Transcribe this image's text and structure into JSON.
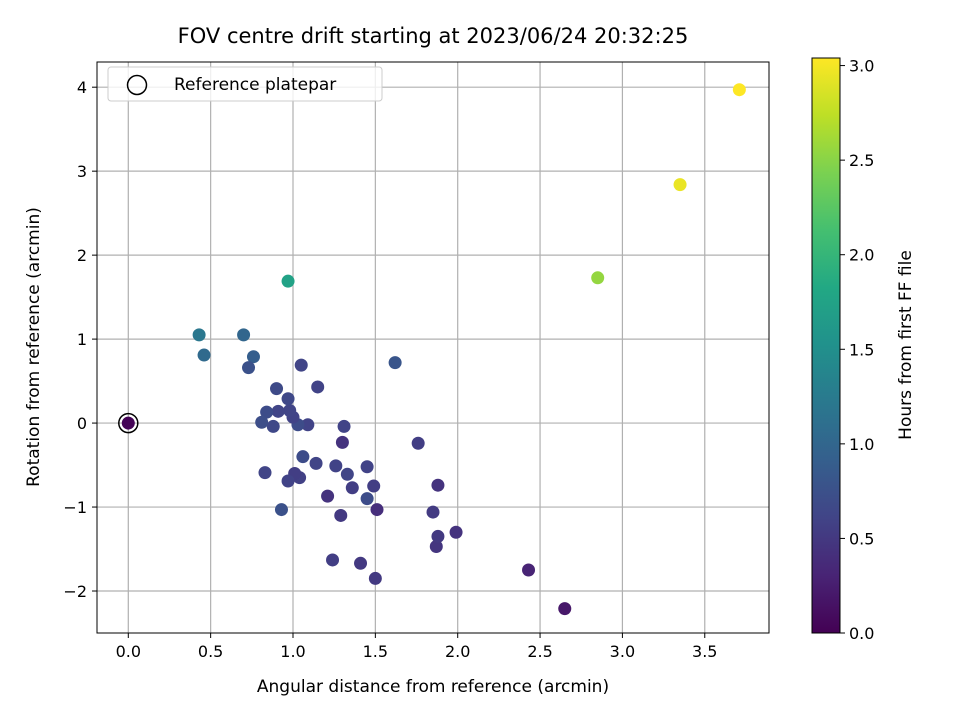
{
  "chart_data": {
    "type": "scatter",
    "title": "FOV centre drift starting at 2023/06/24 20:32:25",
    "xlabel": "Angular distance from reference (arcmin)",
    "ylabel": "Rotation from reference (arcmin)",
    "xlim": [
      -0.19,
      3.89
    ],
    "ylim": [
      -2.5,
      4.3
    ],
    "xticks": [
      0.0,
      0.5,
      1.0,
      1.5,
      2.0,
      2.5,
      3.0,
      3.5
    ],
    "xtick_labels": [
      "0.0",
      "0.5",
      "1.0",
      "1.5",
      "2.0",
      "2.5",
      "3.0",
      "3.5"
    ],
    "yticks": [
      -2,
      -1,
      0,
      1,
      2,
      3,
      4
    ],
    "ytick_labels": [
      "−2",
      "−1",
      "0",
      "1",
      "2",
      "3",
      "4"
    ],
    "grid": true,
    "legend": {
      "position": "upper-left",
      "entries": [
        "Reference platepar"
      ]
    },
    "colorbar": {
      "label": "Hours from first FF file",
      "range": [
        0.0,
        3.04
      ],
      "ticks": [
        0.0,
        0.5,
        1.0,
        1.5,
        2.0,
        2.5,
        3.0
      ],
      "tick_labels": [
        "0.0",
        "0.5",
        "1.0",
        "1.5",
        "2.0",
        "2.5",
        "3.0"
      ],
      "colormap": "viridis"
    },
    "reference_point": {
      "x": 0.0,
      "y": 0.0,
      "hours": 0.0
    },
    "points": [
      {
        "x": 0.0,
        "y": 0.0,
        "hours": 0.02
      },
      {
        "x": 2.65,
        "y": -2.21,
        "hours": 0.2
      },
      {
        "x": 2.43,
        "y": -1.75,
        "hours": 0.3
      },
      {
        "x": 1.99,
        "y": -1.3,
        "hours": 0.45
      },
      {
        "x": 1.87,
        "y": -1.47,
        "hours": 0.47
      },
      {
        "x": 1.88,
        "y": -1.35,
        "hours": 0.5
      },
      {
        "x": 1.88,
        "y": -0.74,
        "hours": 0.45
      },
      {
        "x": 1.85,
        "y": -1.06,
        "hours": 0.52
      },
      {
        "x": 1.76,
        "y": -0.24,
        "hours": 0.55
      },
      {
        "x": 1.62,
        "y": 0.72,
        "hours": 0.8
      },
      {
        "x": 1.51,
        "y": -1.03,
        "hours": 0.4
      },
      {
        "x": 1.5,
        "y": -1.85,
        "hours": 0.5
      },
      {
        "x": 1.49,
        "y": -0.75,
        "hours": 0.55
      },
      {
        "x": 1.45,
        "y": -0.9,
        "hours": 0.7
      },
      {
        "x": 1.45,
        "y": -0.52,
        "hours": 0.6
      },
      {
        "x": 1.41,
        "y": -1.67,
        "hours": 0.5
      },
      {
        "x": 1.36,
        "y": -0.77,
        "hours": 0.55
      },
      {
        "x": 1.33,
        "y": -0.61,
        "hours": 0.62
      },
      {
        "x": 1.31,
        "y": -0.04,
        "hours": 0.6
      },
      {
        "x": 1.3,
        "y": -0.23,
        "hours": 0.45
      },
      {
        "x": 1.29,
        "y": -1.1,
        "hours": 0.5
      },
      {
        "x": 1.26,
        "y": -0.51,
        "hours": 0.6
      },
      {
        "x": 1.24,
        "y": -1.63,
        "hours": 0.55
      },
      {
        "x": 1.21,
        "y": -0.87,
        "hours": 0.45
      },
      {
        "x": 1.15,
        "y": 0.43,
        "hours": 0.6
      },
      {
        "x": 1.14,
        "y": -0.48,
        "hours": 0.62
      },
      {
        "x": 1.09,
        "y": -0.02,
        "hours": 0.6
      },
      {
        "x": 1.06,
        "y": -0.4,
        "hours": 0.7
      },
      {
        "x": 1.05,
        "y": 0.69,
        "hours": 0.62
      },
      {
        "x": 1.04,
        "y": -0.65,
        "hours": 0.58
      },
      {
        "x": 1.03,
        "y": -0.02,
        "hours": 0.7
      },
      {
        "x": 1.01,
        "y": -0.6,
        "hours": 0.55
      },
      {
        "x": 1.0,
        "y": 0.07,
        "hours": 0.6
      },
      {
        "x": 0.98,
        "y": 0.15,
        "hours": 0.62
      },
      {
        "x": 0.97,
        "y": 0.29,
        "hours": 0.65
      },
      {
        "x": 0.97,
        "y": -0.69,
        "hours": 0.6
      },
      {
        "x": 0.93,
        "y": -1.03,
        "hours": 0.75
      },
      {
        "x": 0.91,
        "y": 0.14,
        "hours": 0.62
      },
      {
        "x": 0.9,
        "y": 0.41,
        "hours": 0.68
      },
      {
        "x": 0.88,
        "y": -0.04,
        "hours": 0.65
      },
      {
        "x": 0.84,
        "y": 0.13,
        "hours": 0.7
      },
      {
        "x": 0.83,
        "y": -0.59,
        "hours": 0.62
      },
      {
        "x": 0.81,
        "y": 0.01,
        "hours": 0.72
      },
      {
        "x": 0.76,
        "y": 0.79,
        "hours": 0.9
      },
      {
        "x": 0.73,
        "y": 0.66,
        "hours": 0.75
      },
      {
        "x": 0.7,
        "y": 1.05,
        "hours": 1.0
      },
      {
        "x": 0.46,
        "y": 0.81,
        "hours": 1.05
      },
      {
        "x": 0.43,
        "y": 1.05,
        "hours": 1.2
      },
      {
        "x": 0.97,
        "y": 1.69,
        "hours": 1.75
      },
      {
        "x": 2.85,
        "y": 1.73,
        "hours": 2.55
      },
      {
        "x": 3.35,
        "y": 2.84,
        "hours": 2.95
      },
      {
        "x": 3.71,
        "y": 3.97,
        "hours": 3.04
      }
    ]
  }
}
